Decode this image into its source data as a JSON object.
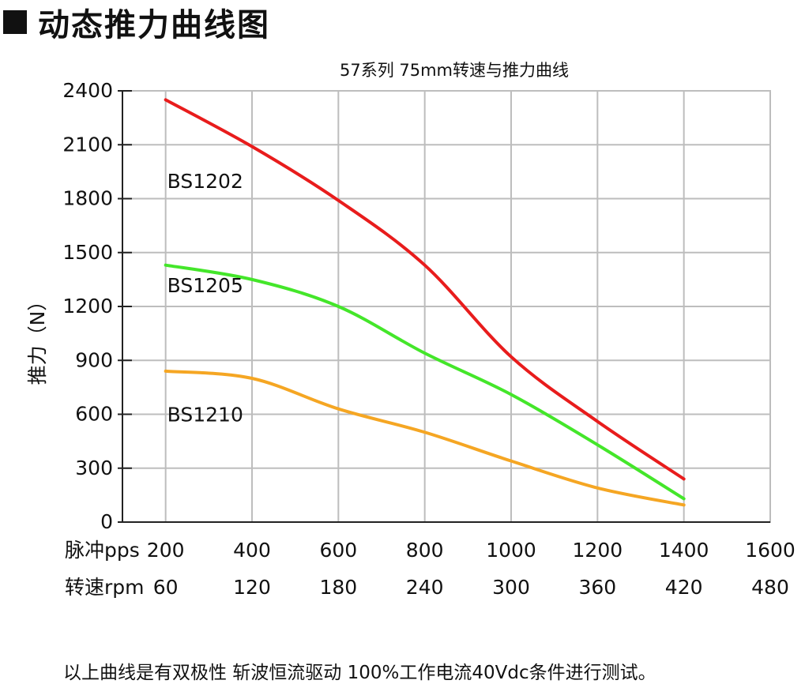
{
  "header": {
    "title": "动态推力曲线图"
  },
  "chart_data": {
    "type": "line",
    "title": "57系列 75mm转速与推力曲线",
    "ylabel": "推力（N）",
    "ylim": [
      0,
      2400
    ],
    "yticks": [
      "0",
      "300",
      "600",
      "900",
      "1200",
      "1500",
      "1800",
      "2100",
      "2400"
    ],
    "xlim": [
      100,
      1600
    ],
    "x_rows": [
      {
        "label": "脉冲pps",
        "ticks": [
          "200",
          "400",
          "600",
          "800",
          "1000",
          "1200",
          "1400",
          "1600"
        ]
      },
      {
        "label": "转速rpm",
        "ticks": [
          "60",
          "120",
          "180",
          "240",
          "300",
          "360",
          "420",
          "480"
        ]
      }
    ],
    "grid": true,
    "series": [
      {
        "name": "BS1202",
        "color": "#e81c1c",
        "label_at": [
          200,
          1860
        ],
        "x": [
          200,
          400,
          600,
          800,
          1000,
          1200,
          1400
        ],
        "values": [
          2350,
          2090,
          1790,
          1430,
          920,
          560,
          240
        ]
      },
      {
        "name": "BS1205",
        "color": "#44e62a",
        "label_at": [
          200,
          1280
        ],
        "x": [
          200,
          400,
          600,
          800,
          1000,
          1200,
          1400
        ],
        "values": [
          1430,
          1350,
          1200,
          940,
          710,
          430,
          130
        ]
      },
      {
        "name": "BS1210",
        "color": "#f5a623",
        "label_at": [
          200,
          560
        ],
        "x": [
          200,
          400,
          600,
          800,
          1000,
          1200,
          1400
        ],
        "values": [
          840,
          800,
          630,
          500,
          340,
          190,
          95
        ]
      }
    ]
  },
  "footnote": "以上曲线是有双极性 斩波恒流驱动 100%工作电流40Vdc条件进行测试。"
}
